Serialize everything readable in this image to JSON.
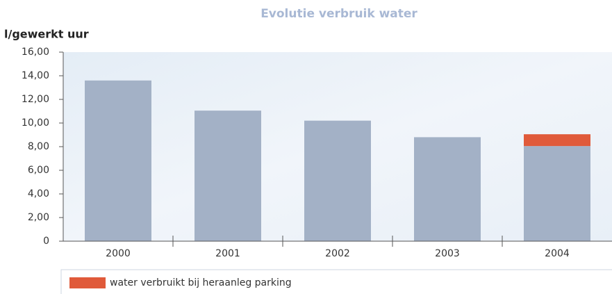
{
  "chart_data": {
    "type": "stacked-bar",
    "title": "Evolutie verbruik water",
    "y_label": "l/gewerkt uur",
    "categories": [
      "2000",
      "2001",
      "2002",
      "2003",
      "2004"
    ],
    "series": [
      {
        "color": "#a3b1c6",
        "values": [
          13.6,
          11.05,
          10.2,
          8.8,
          8.05
        ]
      },
      {
        "name": "water verbruikt bij heraanleg parking",
        "color": "#e05a3a",
        "values": [
          null,
          null,
          null,
          null,
          1.0
        ]
      }
    ],
    "ylim": [
      0,
      16
    ],
    "yticks": [
      0,
      {
        "value": 2,
        "label": "2,00"
      },
      {
        "value": 4,
        "label": "4,00"
      },
      {
        "value": 6,
        "label": "6,00"
      },
      {
        "value": 8,
        "label": "8,00"
      },
      {
        "value": 10,
        "label": "10,00"
      },
      {
        "value": 12,
        "label": "12,00"
      },
      {
        "value": 14,
        "label": "14,00"
      },
      {
        "value": 16,
        "label": "16,00"
      }
    ]
  }
}
